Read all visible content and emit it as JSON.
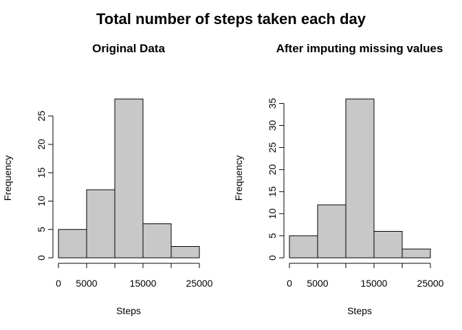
{
  "title": "Total number of steps taken each day",
  "chart_data": [
    {
      "type": "bar",
      "subtitle": "Original Data",
      "xlabel": "Steps",
      "ylabel": "Frequency",
      "bin_edges": [
        0,
        5000,
        10000,
        15000,
        20000,
        25000
      ],
      "values": [
        5,
        12,
        28,
        6,
        2
      ],
      "xlim": [
        0,
        25000
      ],
      "ylim": [
        0,
        28
      ],
      "x_ticks": [
        0,
        5000,
        10000,
        15000,
        20000,
        25000
      ],
      "x_tick_labels": [
        "0",
        "5000",
        "",
        "15000",
        "",
        "25000"
      ],
      "y_ticks": [
        0,
        5,
        10,
        15,
        20,
        25
      ],
      "bar_color": "#C8C8C8",
      "grid": false
    },
    {
      "type": "bar",
      "subtitle": "After imputing missing values",
      "xlabel": "Steps",
      "ylabel": "Frequency",
      "bin_edges": [
        0,
        5000,
        10000,
        15000,
        20000,
        25000
      ],
      "values": [
        5,
        12,
        36,
        6,
        2
      ],
      "xlim": [
        0,
        25000
      ],
      "ylim": [
        0,
        36
      ],
      "x_ticks": [
        0,
        5000,
        10000,
        15000,
        20000,
        25000
      ],
      "x_tick_labels": [
        "0",
        "5000",
        "",
        "15000",
        "",
        "25000"
      ],
      "y_ticks": [
        0,
        5,
        10,
        15,
        20,
        25,
        30,
        35
      ],
      "bar_color": "#C8C8C8",
      "grid": false
    }
  ]
}
